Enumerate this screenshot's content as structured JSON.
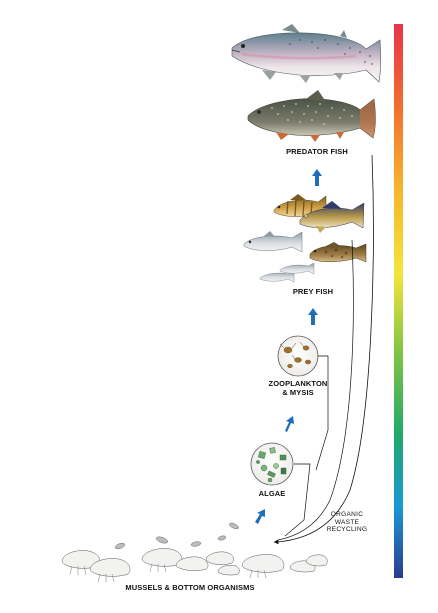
{
  "labels": {
    "predator_fish": "PREDATOR FISH",
    "prey_fish": "PREY FISH",
    "zooplankton_line1": "ZOOPLANKTON",
    "zooplankton_line2": "& MYSIS",
    "algae": "ALGAE",
    "mussels": "MUSSELS & BOTTOM ORGANISMS",
    "organic_line1": "ORGANIC",
    "organic_line2": "WASTE",
    "organic_line3": "RECYCLING"
  },
  "colors": {
    "arrow": "#1f6fb8",
    "spectrum": [
      "#e8354a",
      "#f06a2e",
      "#f7b52c",
      "#f4e53a",
      "#7cc242",
      "#1faa6a",
      "#1a9ad6",
      "#2a3b8f"
    ]
  },
  "icons": {
    "salmon": "salmon-icon",
    "lake_trout": "lake-trout-icon",
    "perch": "perch-icon",
    "walleye": "walleye-icon",
    "whitefish": "whitefish-icon",
    "goby": "goby-icon",
    "smelt": "smelt-icon",
    "zooplankton": "zooplankton-icon",
    "algae": "algae-icon",
    "mussel": "mussel-icon"
  }
}
